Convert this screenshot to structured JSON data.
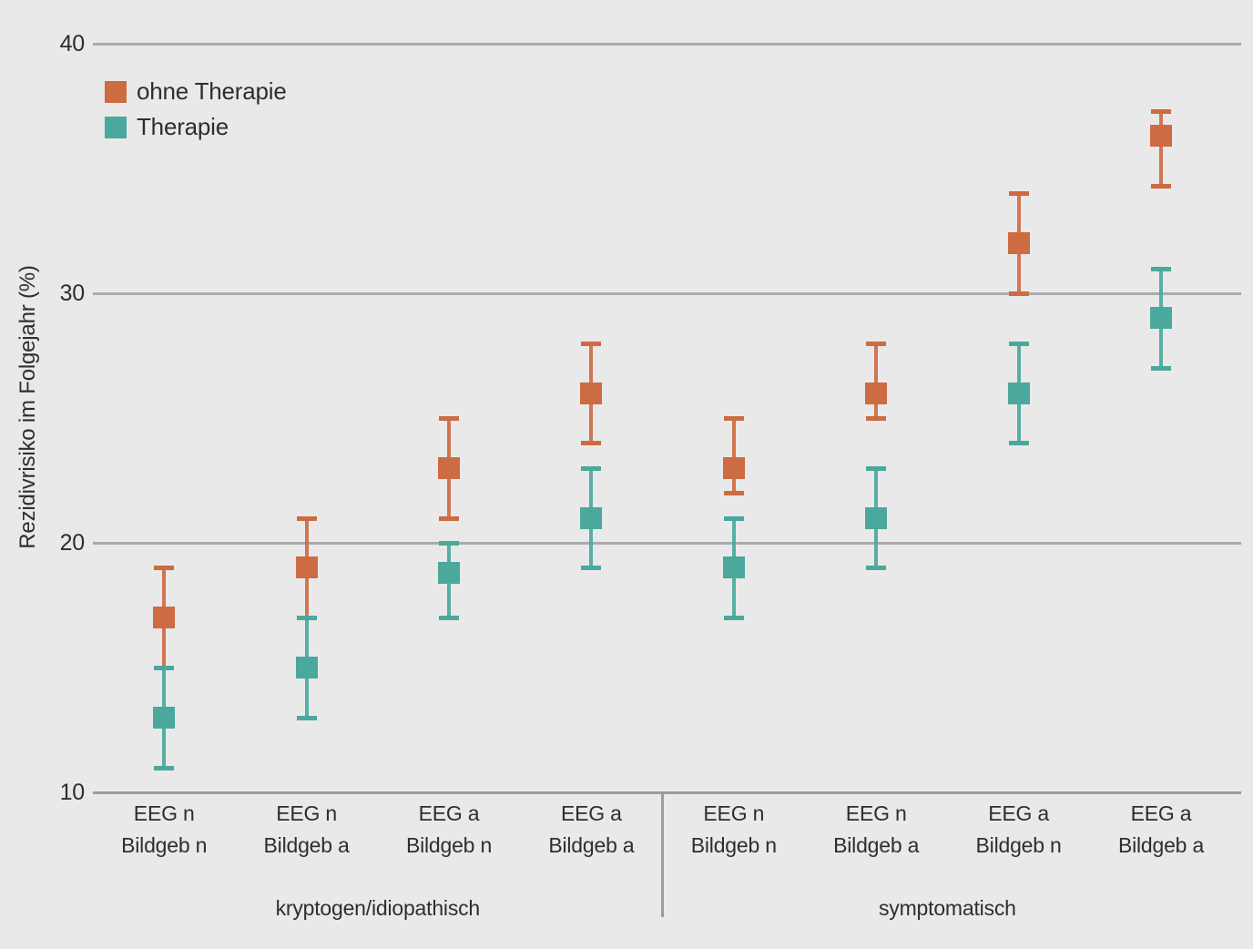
{
  "chart_data": {
    "type": "scatter",
    "subtype": "point-estimate-with-error-bars",
    "title": "",
    "xlabel": "",
    "ylabel": "Rezidivrisiko im Folgejahr (%)",
    "ylim": [
      10,
      40
    ],
    "yticks": [
      40,
      30,
      20,
      10
    ],
    "grid": "horizontal gridlines at 20/30/40, baseline axis at 10",
    "legend_position": "inside top-left",
    "background_color": "#e9e9e9",
    "categories": [
      {
        "line1": "EEG n",
        "line2": "Bildgeb n"
      },
      {
        "line1": "EEG n",
        "line2": "Bildgeb a"
      },
      {
        "line1": "EEG a",
        "line2": "Bildgeb n"
      },
      {
        "line1": "EEG a",
        "line2": "Bildgeb a"
      },
      {
        "line1": "EEG n",
        "line2": "Bildgeb n"
      },
      {
        "line1": "EEG n",
        "line2": "Bildgeb a"
      },
      {
        "line1": "EEG a",
        "line2": "Bildgeb n"
      },
      {
        "line1": "EEG a",
        "line2": "Bildgeb a"
      }
    ],
    "groups": [
      {
        "label": "kryptogen/idiopathisch",
        "from": 0,
        "to": 3
      },
      {
        "label": "symptomatisch",
        "from": 4,
        "to": 7
      }
    ],
    "series": [
      {
        "name": "ohne Therapie",
        "color": "#cd6b42",
        "points": [
          {
            "value": 17,
            "lo": 15,
            "hi": 19
          },
          {
            "value": 19,
            "lo": 17,
            "hi": 21
          },
          {
            "value": 23,
            "lo": 21,
            "hi": 25
          },
          {
            "value": 26,
            "lo": 24,
            "hi": 28
          },
          {
            "value": 23,
            "lo": 22,
            "hi": 25
          },
          {
            "value": 26,
            "lo": 25,
            "hi": 28
          },
          {
            "value": 32,
            "lo": 30,
            "hi": 34
          },
          {
            "value": 36.3,
            "lo": 34.3,
            "hi": 37.3
          }
        ]
      },
      {
        "name": "Therapie",
        "color": "#4aa89d",
        "points": [
          {
            "value": 13,
            "lo": 11,
            "hi": 15
          },
          {
            "value": 15,
            "lo": 13,
            "hi": 17
          },
          {
            "value": 18.8,
            "lo": 17,
            "hi": 20
          },
          {
            "value": 21,
            "lo": 19,
            "hi": 23
          },
          {
            "value": 19,
            "lo": 17,
            "hi": 21
          },
          {
            "value": 21,
            "lo": 19,
            "hi": 23
          },
          {
            "value": 26,
            "lo": 24,
            "hi": 28
          },
          {
            "value": 29,
            "lo": 27,
            "hi": 31
          }
        ]
      }
    ]
  }
}
